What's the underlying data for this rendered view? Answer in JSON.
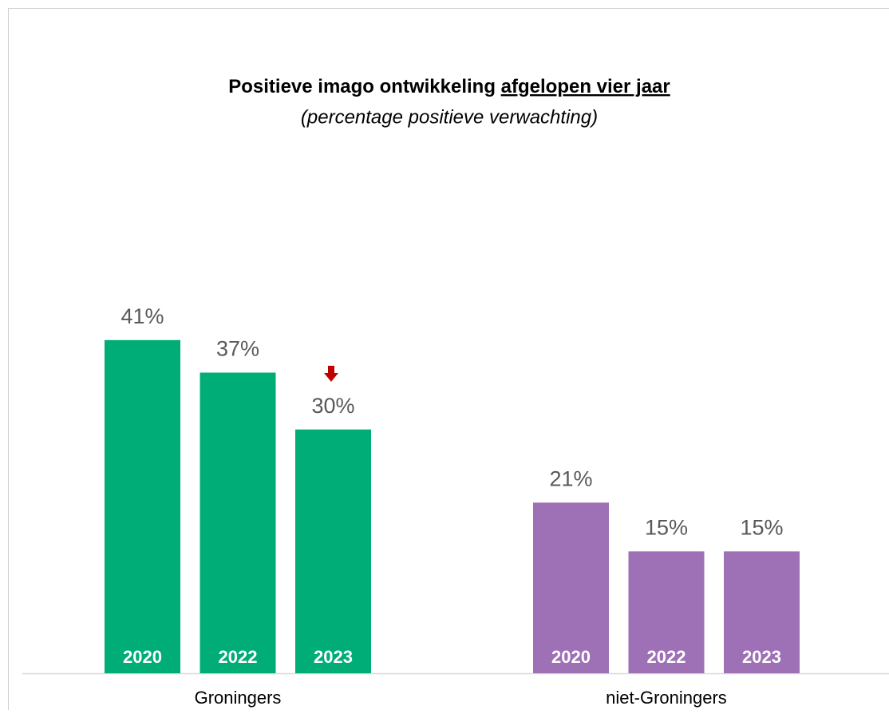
{
  "chart_data": {
    "type": "bar",
    "title": {
      "text": "Positieve imago ontwikkeling",
      "underlined": "afgelopen vier jaar"
    },
    "subtitle": "(percentage positieve verwachting)",
    "categories": [
      "Groningers",
      "niet-Groningers"
    ],
    "category_colors": [
      "#00ad76",
      "#9e70b5"
    ],
    "series": [
      {
        "name": "2020",
        "values": [
          41,
          21
        ],
        "value_labels": [
          "41%",
          "21%"
        ]
      },
      {
        "name": "2022",
        "values": [
          37,
          15
        ],
        "value_labels": [
          "37%",
          "15%"
        ]
      },
      {
        "name": "2023",
        "values": [
          30,
          15
        ],
        "value_labels": [
          "30%",
          "15%"
        ]
      }
    ],
    "ylim": [
      0,
      80
    ]
  }
}
